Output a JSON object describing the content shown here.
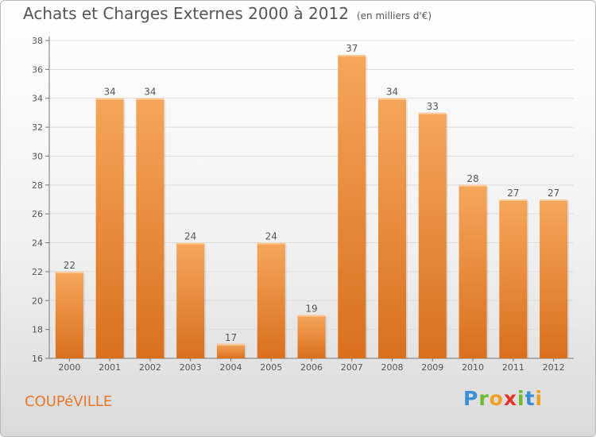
{
  "page": {
    "title": "Achats et Charges Externes 2000 à 2012",
    "subtitle": "(en milliers d'€)",
    "city": "COUPéVILLE"
  },
  "brand": {
    "letters": [
      "P",
      "r",
      "o",
      "x",
      "i",
      "t",
      "i"
    ],
    "colors": [
      "#3a8fd6",
      "#6dbb2e",
      "#f0a020",
      "#e8332a",
      "#6dbb2e",
      "#3a8fd6",
      "#f0a020"
    ]
  },
  "chart_data": {
    "type": "bar",
    "categories": [
      "2000",
      "2001",
      "2002",
      "2003",
      "2004",
      "2005",
      "2006",
      "2007",
      "2008",
      "2009",
      "2010",
      "2011",
      "2012"
    ],
    "values": [
      22,
      34,
      34,
      24,
      17,
      24,
      19,
      37,
      34,
      33,
      28,
      27,
      27
    ],
    "ylim": [
      16,
      38
    ],
    "yticks": [
      16,
      18,
      20,
      22,
      24,
      26,
      28,
      30,
      32,
      34,
      36,
      38
    ],
    "grid": true,
    "bar_color_top": "#f5a65a",
    "bar_color_bottom": "#d96f1c"
  }
}
